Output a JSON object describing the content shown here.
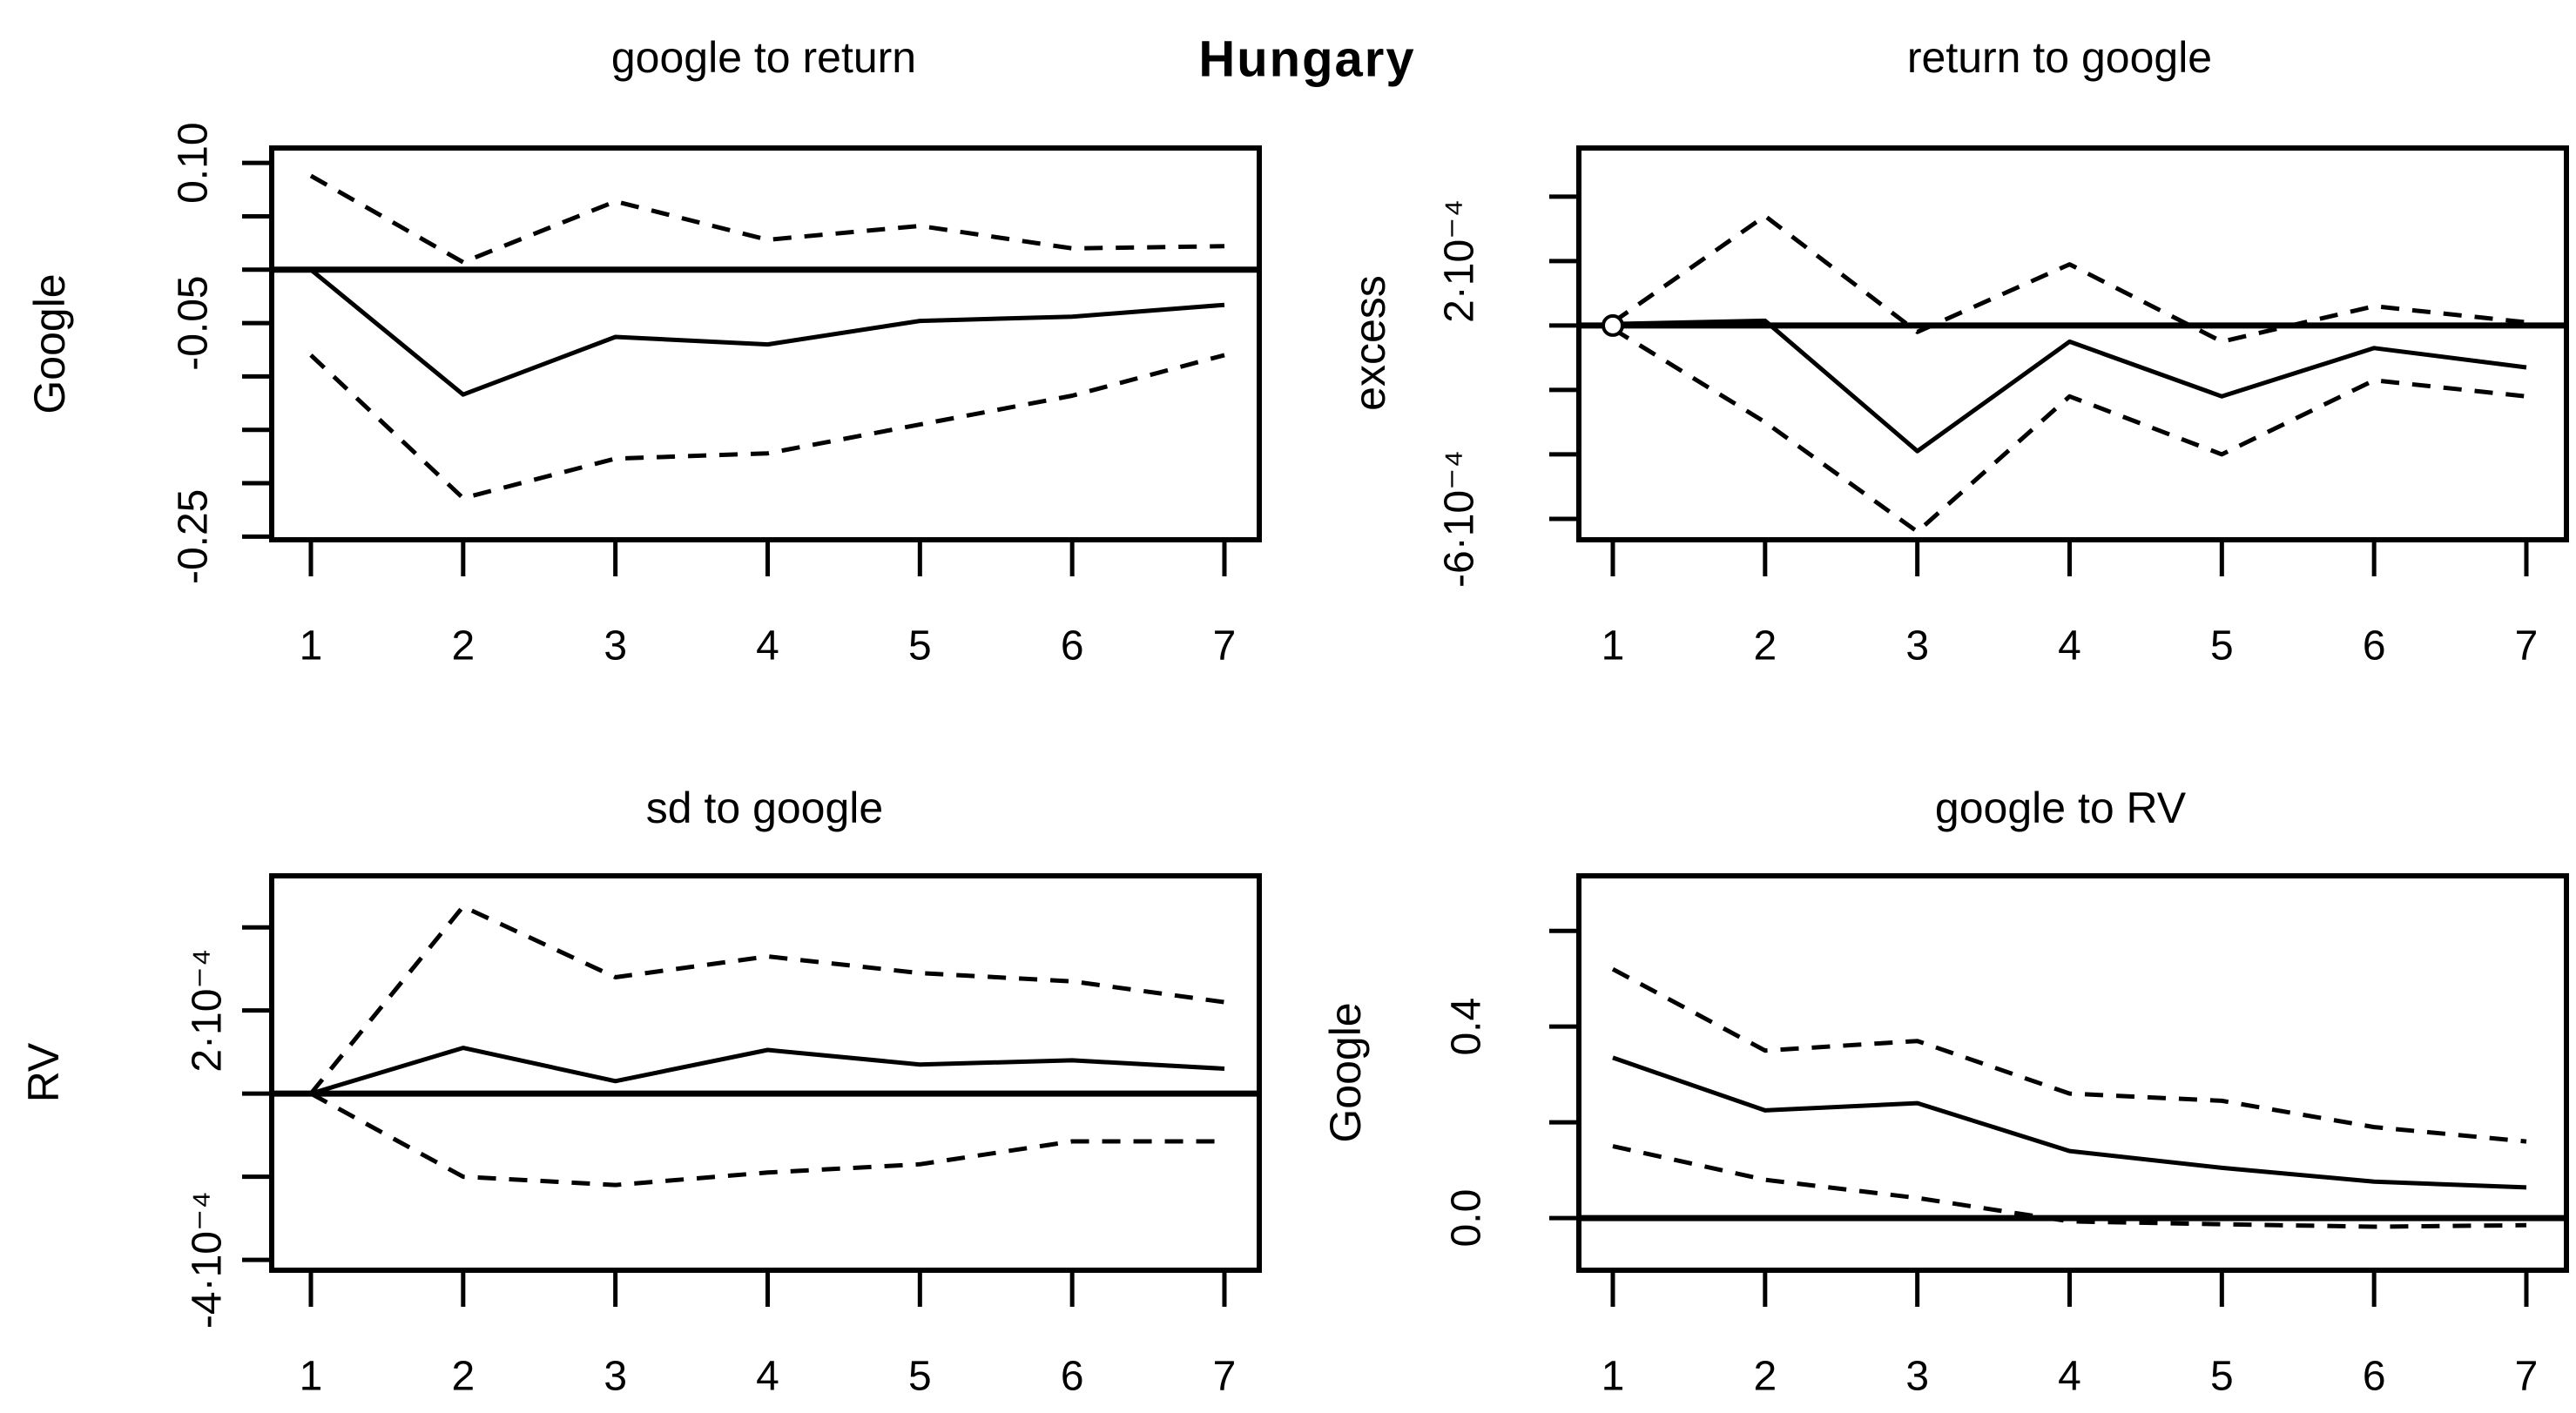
{
  "figure": {
    "main_title": "Hungary",
    "x_values": [
      1,
      2,
      3,
      4,
      5,
      6,
      7
    ],
    "line_color": "#000000",
    "background_color": "#ffffff"
  },
  "chart_data": [
    {
      "type": "line",
      "id": "google-to-return",
      "position": "top-left",
      "title": "google to return",
      "ylab": "Google",
      "x": [
        1,
        2,
        3,
        4,
        5,
        6,
        7
      ],
      "y_multiplier": 1,
      "ylim": [
        -0.253,
        0.114
      ],
      "grid": false,
      "zero_line": true,
      "start_marker": false,
      "yticks": [
        {
          "value": 0.1,
          "label": "0.10"
        },
        {
          "value": 0.05
        },
        {
          "value": 0.0,
          "zero_line": true
        },
        {
          "value": -0.05,
          "label": "-0.05"
        },
        {
          "value": -0.1
        },
        {
          "value": -0.15
        },
        {
          "value": -0.2
        },
        {
          "value": -0.25,
          "label": "-0.25"
        }
      ],
      "series": [
        {
          "name": "upper-ci",
          "style": "dashed",
          "values": [
            0.088,
            0.007,
            0.064,
            0.028,
            0.041,
            0.02,
            0.022
          ]
        },
        {
          "name": "irf",
          "style": "solid",
          "values": [
            0.0,
            -0.117,
            -0.063,
            -0.07,
            -0.048,
            -0.044,
            -0.033
          ]
        },
        {
          "name": "lower-ci",
          "style": "dashed",
          "values": [
            -0.08,
            -0.214,
            -0.177,
            -0.172,
            -0.145,
            -0.118,
            -0.08
          ]
        }
      ]
    },
    {
      "type": "line",
      "id": "return-to-google",
      "position": "top-right",
      "title": "return to google",
      "ylab": "excess",
      "x": [
        1,
        2,
        3,
        4,
        5,
        6,
        7
      ],
      "y_multiplier": 0.0001,
      "ylim": [
        -6.65,
        5.51
      ],
      "grid": false,
      "zero_line": true,
      "start_marker": true,
      "yticks": [
        {
          "value": 4
        },
        {
          "value": 2,
          "label": "2·10⁻⁴"
        },
        {
          "value": 0,
          "zero_line": true
        },
        {
          "value": -2
        },
        {
          "value": -4
        },
        {
          "value": -6,
          "label": "-6·10⁻⁴"
        }
      ],
      "series": [
        {
          "name": "upper-ci",
          "style": "dashed",
          "values": [
            0.1,
            3.4,
            -0.2,
            1.9,
            -0.5,
            0.6,
            0.1
          ]
        },
        {
          "name": "irf",
          "style": "solid",
          "values": [
            0.05,
            0.15,
            -3.9,
            -0.5,
            -2.2,
            -0.7,
            -1.3
          ]
        },
        {
          "name": "lower-ci",
          "style": "dashed",
          "values": [
            -0.1,
            -3.0,
            -6.4,
            -2.2,
            -4.0,
            -1.7,
            -2.2
          ]
        }
      ]
    },
    {
      "type": "line",
      "id": "sd-to-google",
      "position": "bottom-left",
      "title": "sd to google",
      "ylab": "RV",
      "x": [
        1,
        2,
        3,
        4,
        5,
        6,
        7
      ],
      "y_multiplier": 0.0001,
      "ylim": [
        -4.25,
        5.24
      ],
      "grid": false,
      "zero_line": true,
      "start_marker": false,
      "yticks": [
        {
          "value": 4
        },
        {
          "value": 2,
          "label": "2·10⁻⁴"
        },
        {
          "value": 0,
          "zero_line": true
        },
        {
          "value": -2
        },
        {
          "value": -4,
          "label": "-4·10⁻⁴"
        }
      ],
      "series": [
        {
          "name": "upper-ci",
          "style": "dashed",
          "values": [
            0.0,
            4.5,
            2.8,
            3.3,
            2.9,
            2.7,
            2.2
          ]
        },
        {
          "name": "irf",
          "style": "solid",
          "values": [
            0.0,
            1.1,
            0.3,
            1.05,
            0.7,
            0.8,
            0.6
          ]
        },
        {
          "name": "lower-ci",
          "style": "dashed",
          "values": [
            0.0,
            -2.0,
            -2.2,
            -1.9,
            -1.7,
            -1.15,
            -1.15
          ]
        }
      ]
    },
    {
      "type": "line",
      "id": "google-to-RV",
      "position": "bottom-right",
      "title": "google to RV",
      "ylab": "Google",
      "x": [
        1,
        2,
        3,
        4,
        5,
        6,
        7
      ],
      "y_multiplier": 1,
      "ylim": [
        -0.109,
        0.715
      ],
      "grid": false,
      "zero_line": true,
      "start_marker": false,
      "yticks": [
        {
          "value": 0.6
        },
        {
          "value": 0.4,
          "label": "0.4"
        },
        {
          "value": 0.2
        },
        {
          "value": 0.0,
          "label": "0.0",
          "zero_line": true
        }
      ],
      "series": [
        {
          "name": "upper-ci",
          "style": "dashed",
          "values": [
            0.52,
            0.35,
            0.37,
            0.26,
            0.245,
            0.19,
            0.16
          ]
        },
        {
          "name": "irf",
          "style": "solid",
          "values": [
            0.335,
            0.225,
            0.24,
            0.14,
            0.105,
            0.076,
            0.064
          ]
        },
        {
          "name": "lower-ci",
          "style": "dashed",
          "values": [
            0.15,
            0.08,
            0.042,
            -0.007,
            -0.013,
            -0.018,
            -0.015
          ]
        }
      ]
    }
  ]
}
